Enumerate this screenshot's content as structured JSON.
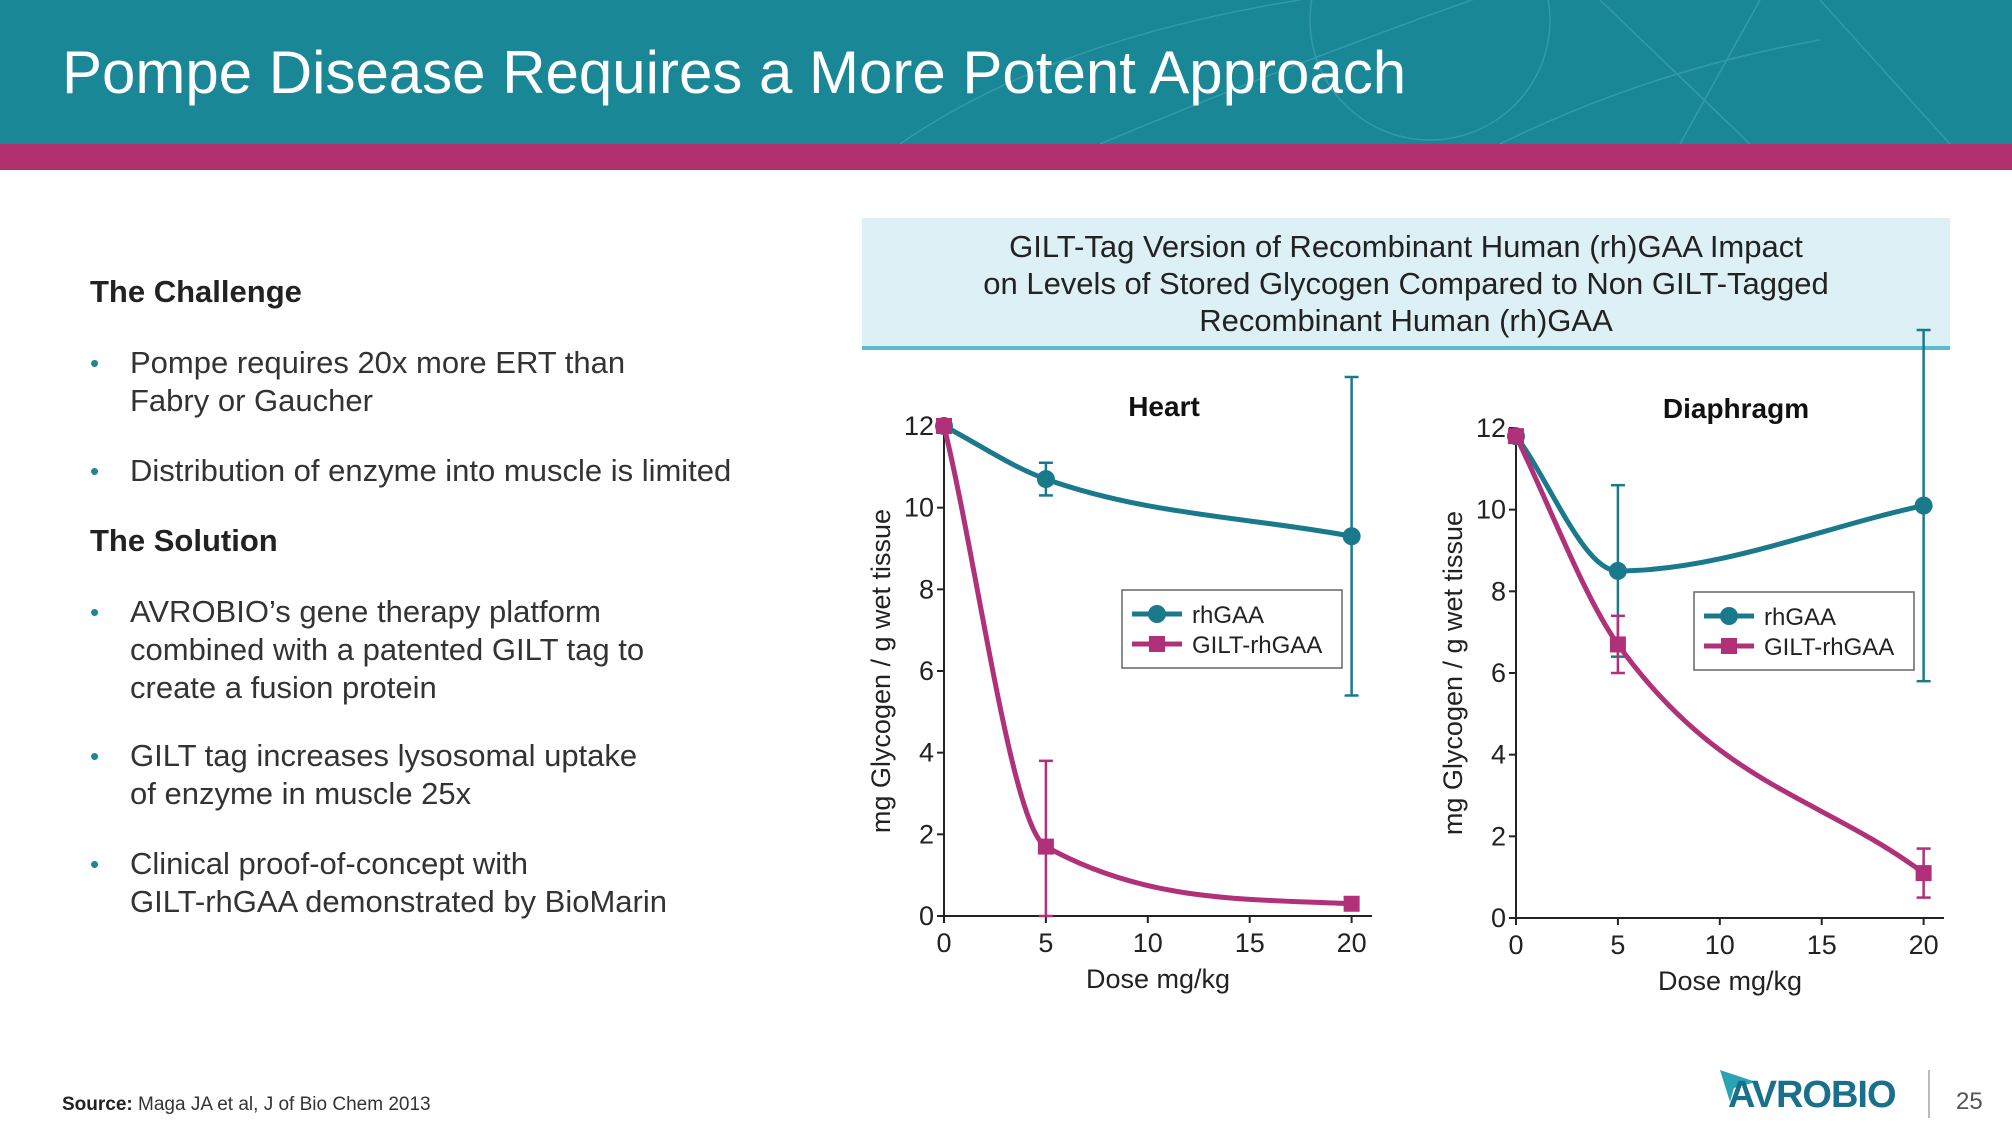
{
  "header": {
    "title": "Pompe Disease Requires a More Potent Approach"
  },
  "left": {
    "challenge_heading": "The Challenge",
    "challenge_bullets": [
      "Pompe requires 20x more ERT than\nFabry or Gaucher",
      "Distribution of enzyme into muscle is limited"
    ],
    "solution_heading": "The Solution",
    "solution_bullets": [
      "AVROBIO’s gene therapy platform\ncombined with a patented GILT tag to\ncreate a fusion protein",
      "GILT tag increases lysosomal uptake\nof enzyme in muscle 25x",
      "Clinical proof-of-concept with\nGILT-rhGAA demonstrated by BioMarin"
    ]
  },
  "figure_title": "GILT-Tag Version of Recombinant Human (rh)GAA Impact\non Levels of Stored Glycogen Compared to Non GILT-Tagged\nRecombinant Human (rh)GAA",
  "footer": {
    "source_label": "Source:",
    "source_text": "Maga JA et al, J of Bio Chem 2013",
    "logo_text": "AVROBIO",
    "page_number": "25"
  },
  "colors": {
    "teal": "#1a7a8c",
    "magenta": "#b0307a",
    "header": "#1a8797",
    "stripe": "#b0316e"
  },
  "chart_data": [
    {
      "type": "line",
      "title": "Heart",
      "xlabel": "Dose mg/kg",
      "ylabel": "mg Glycogen / g wet tissue",
      "xlim": [
        0,
        21
      ],
      "ylim": [
        0,
        12
      ],
      "xticks": [
        0,
        5,
        10,
        15,
        20
      ],
      "yticks": [
        0,
        2,
        4,
        6,
        8,
        10,
        12
      ],
      "x": [
        0,
        5,
        20
      ],
      "series": [
        {
          "name": "rhGAA",
          "marker": "circle",
          "values": [
            12,
            10.7,
            9.3
          ],
          "errors": [
            0,
            0.4,
            3.9
          ]
        },
        {
          "name": "GILT-rhGAA",
          "marker": "square",
          "values": [
            12,
            1.7,
            0.3
          ],
          "errors": [
            0,
            2.1,
            0.1
          ]
        }
      ],
      "legend": "middle-right"
    },
    {
      "type": "line",
      "title": "Diaphragm",
      "xlabel": "Dose mg/kg",
      "ylabel": "mg Glycogen / g wet tissue",
      "xlim": [
        0,
        21
      ],
      "ylim": [
        0,
        12
      ],
      "xticks": [
        0,
        5,
        10,
        15,
        20
      ],
      "yticks": [
        0,
        2,
        4,
        6,
        8,
        10,
        12
      ],
      "x": [
        0,
        5,
        20
      ],
      "series": [
        {
          "name": "rhGAA",
          "marker": "circle",
          "values": [
            11.8,
            8.5,
            10.1
          ],
          "errors": [
            0,
            2.1,
            4.3
          ]
        },
        {
          "name": "GILT-rhGAA",
          "marker": "square",
          "values": [
            11.8,
            6.7,
            1.1
          ],
          "errors": [
            0,
            0.7,
            0.6
          ]
        }
      ],
      "legend": "middle-right"
    }
  ]
}
